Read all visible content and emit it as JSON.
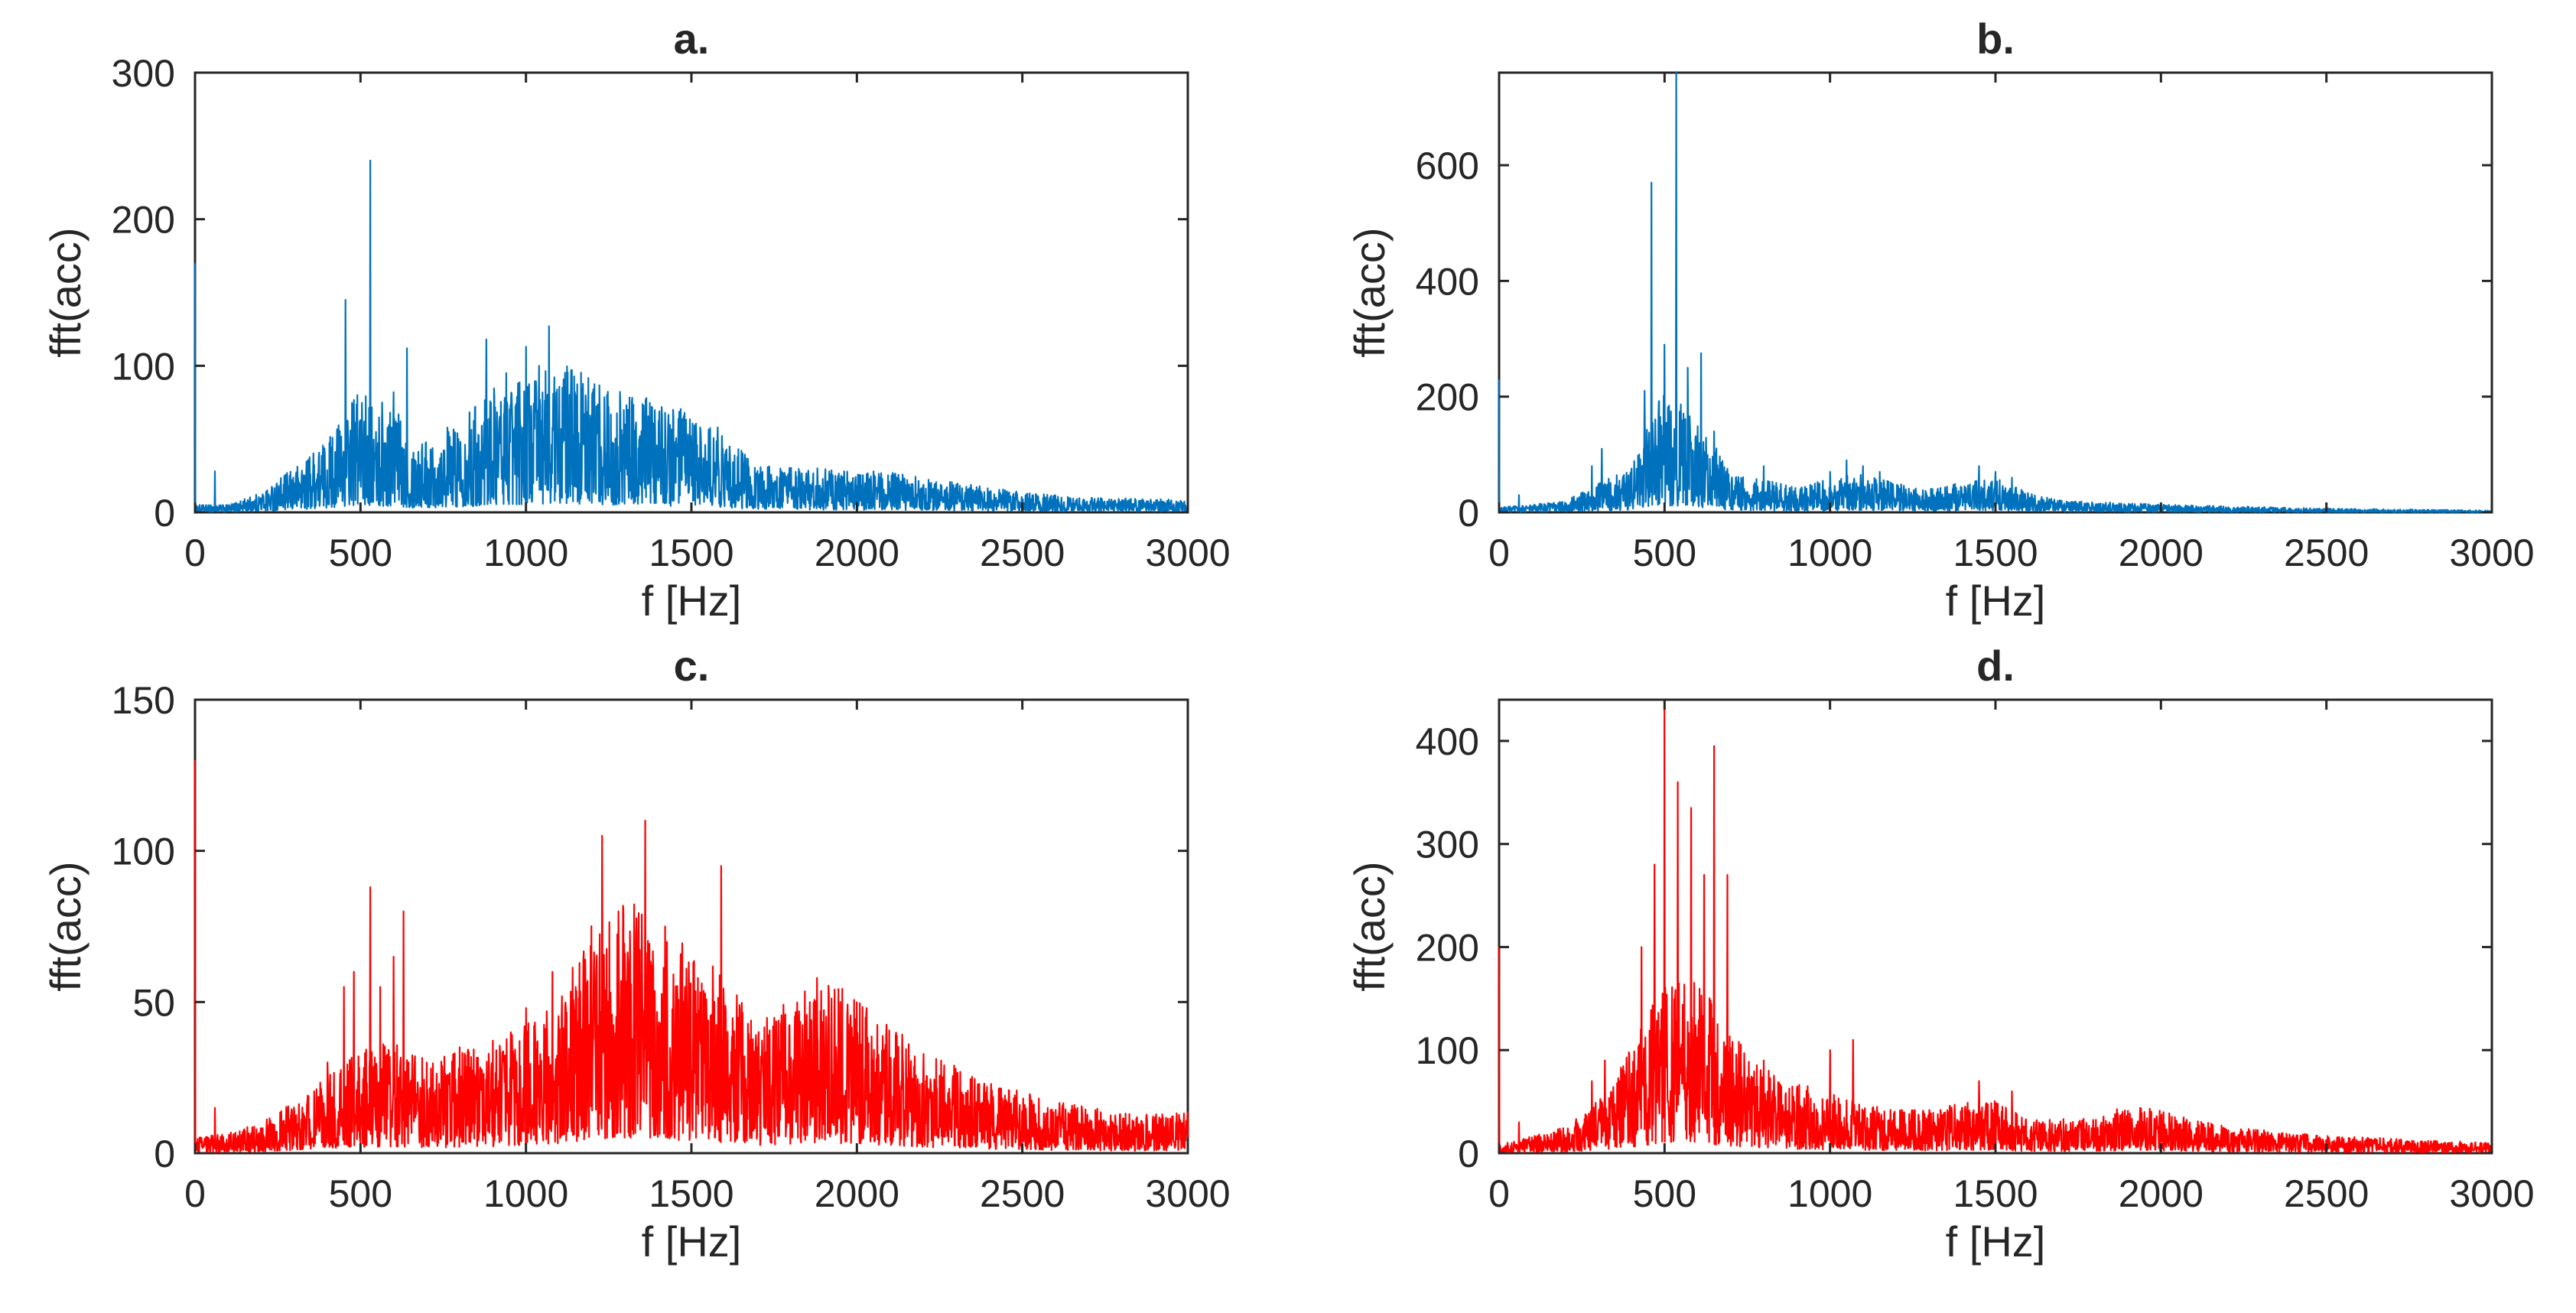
{
  "figure": {
    "panels_count": 4
  },
  "chart_data": [
    {
      "type": "line",
      "title": "a.",
      "xlabel": "f [Hz]",
      "ylabel": "fft(acc)",
      "xlim": [
        0,
        3000
      ],
      "ylim": [
        0,
        300
      ],
      "xticks": [
        0,
        500,
        1000,
        1500,
        2000,
        2500,
        3000
      ],
      "yticks": [
        0,
        100,
        200,
        300
      ],
      "color": "#0072BD",
      "x_label_visible": true,
      "envelope": [
        [
          0,
          3
        ],
        [
          100,
          3
        ],
        [
          200,
          8
        ],
        [
          300,
          18
        ],
        [
          400,
          30
        ],
        [
          450,
          40
        ],
        [
          500,
          50
        ],
        [
          550,
          40
        ],
        [
          600,
          45
        ],
        [
          650,
          30
        ],
        [
          700,
          30
        ],
        [
          800,
          38
        ],
        [
          900,
          50
        ],
        [
          1000,
          55
        ],
        [
          1100,
          60
        ],
        [
          1200,
          55
        ],
        [
          1300,
          48
        ],
        [
          1400,
          45
        ],
        [
          1500,
          40
        ],
        [
          1600,
          30
        ],
        [
          1700,
          20
        ],
        [
          1800,
          18
        ],
        [
          1900,
          18
        ],
        [
          2000,
          16
        ],
        [
          2100,
          16
        ],
        [
          2200,
          14
        ],
        [
          2300,
          12
        ],
        [
          2500,
          8
        ],
        [
          2700,
          6
        ],
        [
          3000,
          5
        ]
      ],
      "peaks": [
        [
          0,
          170
        ],
        [
          60,
          28
        ],
        [
          260,
          18
        ],
        [
          330,
          15
        ],
        [
          430,
          55
        ],
        [
          455,
          145
        ],
        [
          490,
          80
        ],
        [
          530,
          240
        ],
        [
          565,
          75
        ],
        [
          600,
          82
        ],
        [
          640,
          112
        ],
        [
          700,
          35
        ],
        [
          800,
          35
        ],
        [
          880,
          118
        ],
        [
          940,
          95
        ],
        [
          1000,
          113
        ],
        [
          1040,
          100
        ],
        [
          1070,
          127
        ],
        [
          1110,
          85
        ],
        [
          1150,
          80
        ],
        [
          1200,
          80
        ],
        [
          1250,
          72
        ],
        [
          1300,
          60
        ],
        [
          1380,
          72
        ],
        [
          1420,
          68
        ],
        [
          1470,
          62
        ],
        [
          1580,
          58
        ],
        [
          1700,
          22
        ],
        [
          2050,
          28
        ],
        [
          2200,
          18
        ],
        [
          2400,
          14
        ]
      ]
    },
    {
      "type": "line",
      "title": "b.",
      "xlabel": "f [Hz]",
      "ylabel": "fft(acc)",
      "xlim": [
        0,
        3000
      ],
      "ylim": [
        0,
        760
      ],
      "xticks": [
        0,
        500,
        1000,
        1500,
        2000,
        2500,
        3000
      ],
      "yticks": [
        0,
        200,
        400,
        600
      ],
      "color": "#0072BD",
      "x_label_visible": true,
      "envelope": [
        [
          0,
          5
        ],
        [
          200,
          12
        ],
        [
          300,
          30
        ],
        [
          400,
          45
        ],
        [
          450,
          100
        ],
        [
          500,
          120
        ],
        [
          550,
          110
        ],
        [
          600,
          90
        ],
        [
          650,
          70
        ],
        [
          700,
          40
        ],
        [
          800,
          35
        ],
        [
          900,
          25
        ],
        [
          1000,
          35
        ],
        [
          1100,
          40
        ],
        [
          1200,
          30
        ],
        [
          1300,
          25
        ],
        [
          1400,
          30
        ],
        [
          1500,
          35
        ],
        [
          1600,
          20
        ],
        [
          1700,
          12
        ],
        [
          2000,
          8
        ],
        [
          2500,
          4
        ],
        [
          3000,
          2
        ]
      ],
      "peaks": [
        [
          0,
          230
        ],
        [
          60,
          30
        ],
        [
          280,
          80
        ],
        [
          310,
          110
        ],
        [
          440,
          210
        ],
        [
          460,
          570
        ],
        [
          490,
          150
        ],
        [
          500,
          290
        ],
        [
          535,
          760
        ],
        [
          570,
          250
        ],
        [
          610,
          275
        ],
        [
          650,
          140
        ],
        [
          800,
          80
        ],
        [
          1000,
          70
        ],
        [
          1050,
          90
        ],
        [
          1100,
          80
        ],
        [
          1150,
          70
        ],
        [
          1450,
          80
        ],
        [
          1500,
          70
        ],
        [
          1550,
          60
        ]
      ]
    },
    {
      "type": "line",
      "title": "c.",
      "xlabel": "f [Hz]",
      "ylabel": "fft(acc)",
      "xlim": [
        0,
        3000
      ],
      "ylim": [
        0,
        150
      ],
      "xticks": [
        0,
        500,
        1000,
        1500,
        2000,
        2500,
        3000
      ],
      "yticks": [
        0,
        50,
        100,
        150
      ],
      "color": "#FF0000",
      "x_label_visible": true,
      "envelope": [
        [
          0,
          3
        ],
        [
          100,
          4
        ],
        [
          200,
          6
        ],
        [
          300,
          10
        ],
        [
          400,
          15
        ],
        [
          500,
          20
        ],
        [
          600,
          22
        ],
        [
          700,
          18
        ],
        [
          800,
          20
        ],
        [
          900,
          22
        ],
        [
          1000,
          25
        ],
        [
          1100,
          30
        ],
        [
          1200,
          45
        ],
        [
          1300,
          50
        ],
        [
          1400,
          45
        ],
        [
          1500,
          40
        ],
        [
          1600,
          35
        ],
        [
          1700,
          25
        ],
        [
          1800,
          30
        ],
        [
          1900,
          35
        ],
        [
          2000,
          30
        ],
        [
          2100,
          25
        ],
        [
          2200,
          20
        ],
        [
          2400,
          14
        ],
        [
          2600,
          10
        ],
        [
          2800,
          8
        ],
        [
          3000,
          8
        ]
      ],
      "peaks": [
        [
          0,
          130
        ],
        [
          60,
          15
        ],
        [
          400,
          30
        ],
        [
          450,
          55
        ],
        [
          480,
          60
        ],
        [
          530,
          88
        ],
        [
          560,
          55
        ],
        [
          600,
          65
        ],
        [
          630,
          80
        ],
        [
          700,
          30
        ],
        [
          800,
          35
        ],
        [
          1000,
          48
        ],
        [
          1080,
          60
        ],
        [
          1150,
          55
        ],
        [
          1230,
          105
        ],
        [
          1280,
          80
        ],
        [
          1360,
          110
        ],
        [
          1420,
          75
        ],
        [
          1480,
          55
        ],
        [
          1590,
          95
        ],
        [
          1700,
          35
        ],
        [
          1880,
          58
        ],
        [
          1950,
          50
        ],
        [
          2030,
          48
        ],
        [
          2200,
          25
        ]
      ]
    },
    {
      "type": "line",
      "title": "d.",
      "xlabel": "f [Hz]",
      "ylabel": "fft(acc)",
      "xlim": [
        0,
        3000
      ],
      "ylim": [
        0,
        440
      ],
      "xticks": [
        0,
        500,
        1000,
        1500,
        2000,
        2500,
        3000
      ],
      "yticks": [
        0,
        100,
        200,
        300,
        400
      ],
      "color": "#FF0000",
      "x_label_visible": true,
      "envelope": [
        [
          0,
          5
        ],
        [
          200,
          15
        ],
        [
          300,
          30
        ],
        [
          400,
          60
        ],
        [
          500,
          100
        ],
        [
          600,
          100
        ],
        [
          700,
          70
        ],
        [
          800,
          50
        ],
        [
          900,
          40
        ],
        [
          1000,
          35
        ],
        [
          1100,
          30
        ],
        [
          1200,
          25
        ],
        [
          1300,
          25
        ],
        [
          1400,
          30
        ],
        [
          1500,
          30
        ],
        [
          1600,
          20
        ],
        [
          1800,
          20
        ],
        [
          1900,
          28
        ],
        [
          2000,
          25
        ],
        [
          2200,
          15
        ],
        [
          2500,
          10
        ],
        [
          3000,
          6
        ]
      ],
      "peaks": [
        [
          0,
          200
        ],
        [
          60,
          30
        ],
        [
          280,
          70
        ],
        [
          320,
          90
        ],
        [
          430,
          200
        ],
        [
          470,
          280
        ],
        [
          500,
          435
        ],
        [
          540,
          360
        ],
        [
          580,
          335
        ],
        [
          620,
          270
        ],
        [
          650,
          395
        ],
        [
          690,
          270
        ],
        [
          800,
          90
        ],
        [
          1000,
          100
        ],
        [
          1070,
          110
        ],
        [
          1450,
          70
        ],
        [
          1550,
          60
        ],
        [
          1950,
          40
        ],
        [
          2000,
          35
        ]
      ]
    }
  ]
}
